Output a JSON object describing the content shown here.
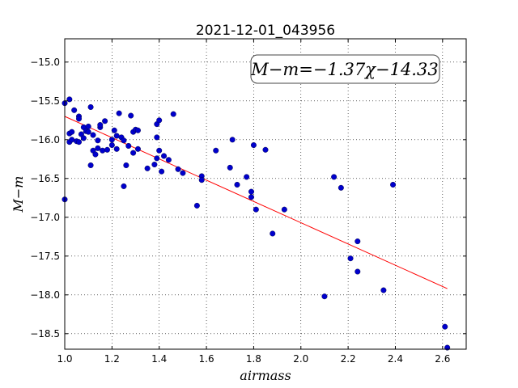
{
  "chart_data": {
    "type": "scatter",
    "title": "2021-12-01_043956",
    "xlabel": "airmass",
    "ylabel": "M−m",
    "xlim": [
      1.0,
      2.7
    ],
    "ylim": [
      -18.7,
      -14.7
    ],
    "x_ticks": [
      1.0,
      1.2,
      1.4,
      1.6,
      1.8,
      2.0,
      2.2,
      2.4,
      2.6
    ],
    "x_tick_labels": [
      "1.0",
      "1.2",
      "1.4",
      "1.6",
      "1.8",
      "2.0",
      "2.2",
      "2.4",
      "2.6"
    ],
    "y_ticks": [
      -15.0,
      -15.5,
      -16.0,
      -16.5,
      -17.0,
      -17.5,
      -18.0,
      -18.5
    ],
    "y_tick_labels": [
      "−15.0",
      "−15.5",
      "−16.0",
      "−16.5",
      "−17.0",
      "−17.5",
      "−18.0",
      "−18.5"
    ],
    "grid": true,
    "annotation": {
      "text": "M−m=−1.37χ−14.33",
      "position": "top-right"
    },
    "colors": {
      "points": "#0000cc",
      "fit_line": "#ff0000"
    },
    "fit_line": {
      "slope": -1.37,
      "intercept": -14.33,
      "x_range": [
        1.0,
        2.62
      ]
    },
    "points": {
      "x": [
        1.0,
        1.0,
        1.02,
        1.02,
        1.02,
        1.03,
        1.03,
        1.04,
        1.05,
        1.06,
        1.06,
        1.06,
        1.07,
        1.08,
        1.08,
        1.09,
        1.1,
        1.1,
        1.11,
        1.11,
        1.12,
        1.12,
        1.13,
        1.14,
        1.14,
        1.15,
        1.15,
        1.16,
        1.17,
        1.18,
        1.2,
        1.2,
        1.21,
        1.22,
        1.22,
        1.23,
        1.24,
        1.25,
        1.25,
        1.26,
        1.27,
        1.28,
        1.29,
        1.29,
        1.3,
        1.31,
        1.31,
        1.35,
        1.38,
        1.39,
        1.39,
        1.39,
        1.4,
        1.4,
        1.41,
        1.42,
        1.44,
        1.46,
        1.48,
        1.5,
        1.56,
        1.58,
        1.58,
        1.64,
        1.7,
        1.71,
        1.73,
        1.77,
        1.79,
        1.79,
        1.8,
        1.81,
        1.85,
        1.88,
        1.93,
        2.1,
        2.14,
        2.17,
        2.21,
        2.24,
        2.24,
        2.35,
        2.39,
        2.61,
        2.62
      ],
      "y": [
        -15.53,
        -16.77,
        -15.48,
        -15.92,
        -16.03,
        -15.9,
        -16.0,
        -15.62,
        -16.02,
        -15.7,
        -15.73,
        -16.03,
        -15.93,
        -15.98,
        -15.84,
        -15.89,
        -15.83,
        -15.9,
        -16.33,
        -15.58,
        -15.94,
        -16.14,
        -16.19,
        -16.11,
        -16.01,
        -15.84,
        -15.81,
        -16.14,
        -15.76,
        -16.13,
        -16.07,
        -16.0,
        -15.88,
        -16.12,
        -15.95,
        -15.66,
        -15.97,
        -16.01,
        -16.6,
        -16.33,
        -16.08,
        -15.69,
        -15.9,
        -16.17,
        -15.87,
        -15.88,
        -16.12,
        -16.37,
        -16.32,
        -15.8,
        -15.97,
        -16.24,
        -16.14,
        -15.75,
        -16.41,
        -16.21,
        -16.26,
        -15.67,
        -16.38,
        -16.43,
        -16.85,
        -16.47,
        -16.52,
        -16.14,
        -16.36,
        -16.0,
        -16.58,
        -16.48,
        -16.67,
        -16.74,
        -16.07,
        -16.9,
        -16.13,
        -17.21,
        -16.9,
        -18.02,
        -16.48,
        -16.62,
        -17.53,
        -17.31,
        -17.7,
        -17.94,
        -16.58,
        -18.41,
        -18.68
      ]
    }
  }
}
